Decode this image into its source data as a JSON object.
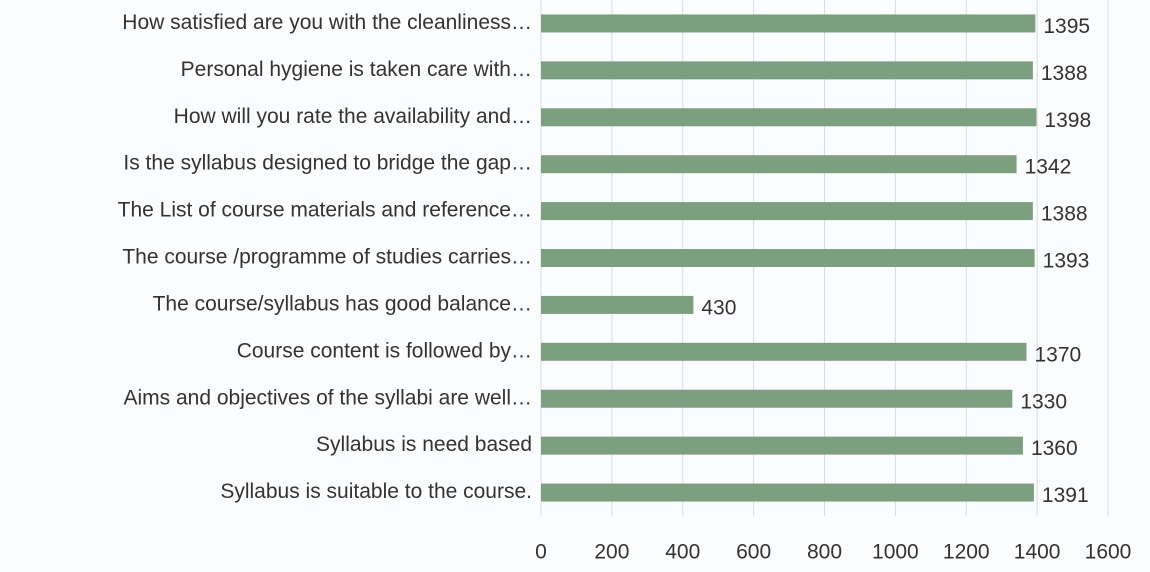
{
  "chart_data": {
    "type": "hbar",
    "categories": [
      "How satisfied are you with the cleanliness…",
      "Personal hygiene is taken care with…",
      "How will you rate the availability and…",
      "Is the syllabus designed to bridge the gap…",
      "The List of course materials and reference…",
      "The course /programme of studies carries…",
      "The course/syllabus has good balance…",
      "Course content is followed by…",
      "Aims and objectives of the syllabi are well…",
      "Syllabus is need based",
      "Syllabus is suitable to the course."
    ],
    "values": [
      1395,
      1388,
      1398,
      1342,
      1388,
      1393,
      430,
      1370,
      1330,
      1360,
      1391
    ],
    "color": "#7c9f80",
    "xlim": [
      0,
      1600
    ],
    "xticks": [
      0,
      200,
      400,
      600,
      800,
      1000,
      1200,
      1400,
      1600
    ],
    "grid": true
  }
}
